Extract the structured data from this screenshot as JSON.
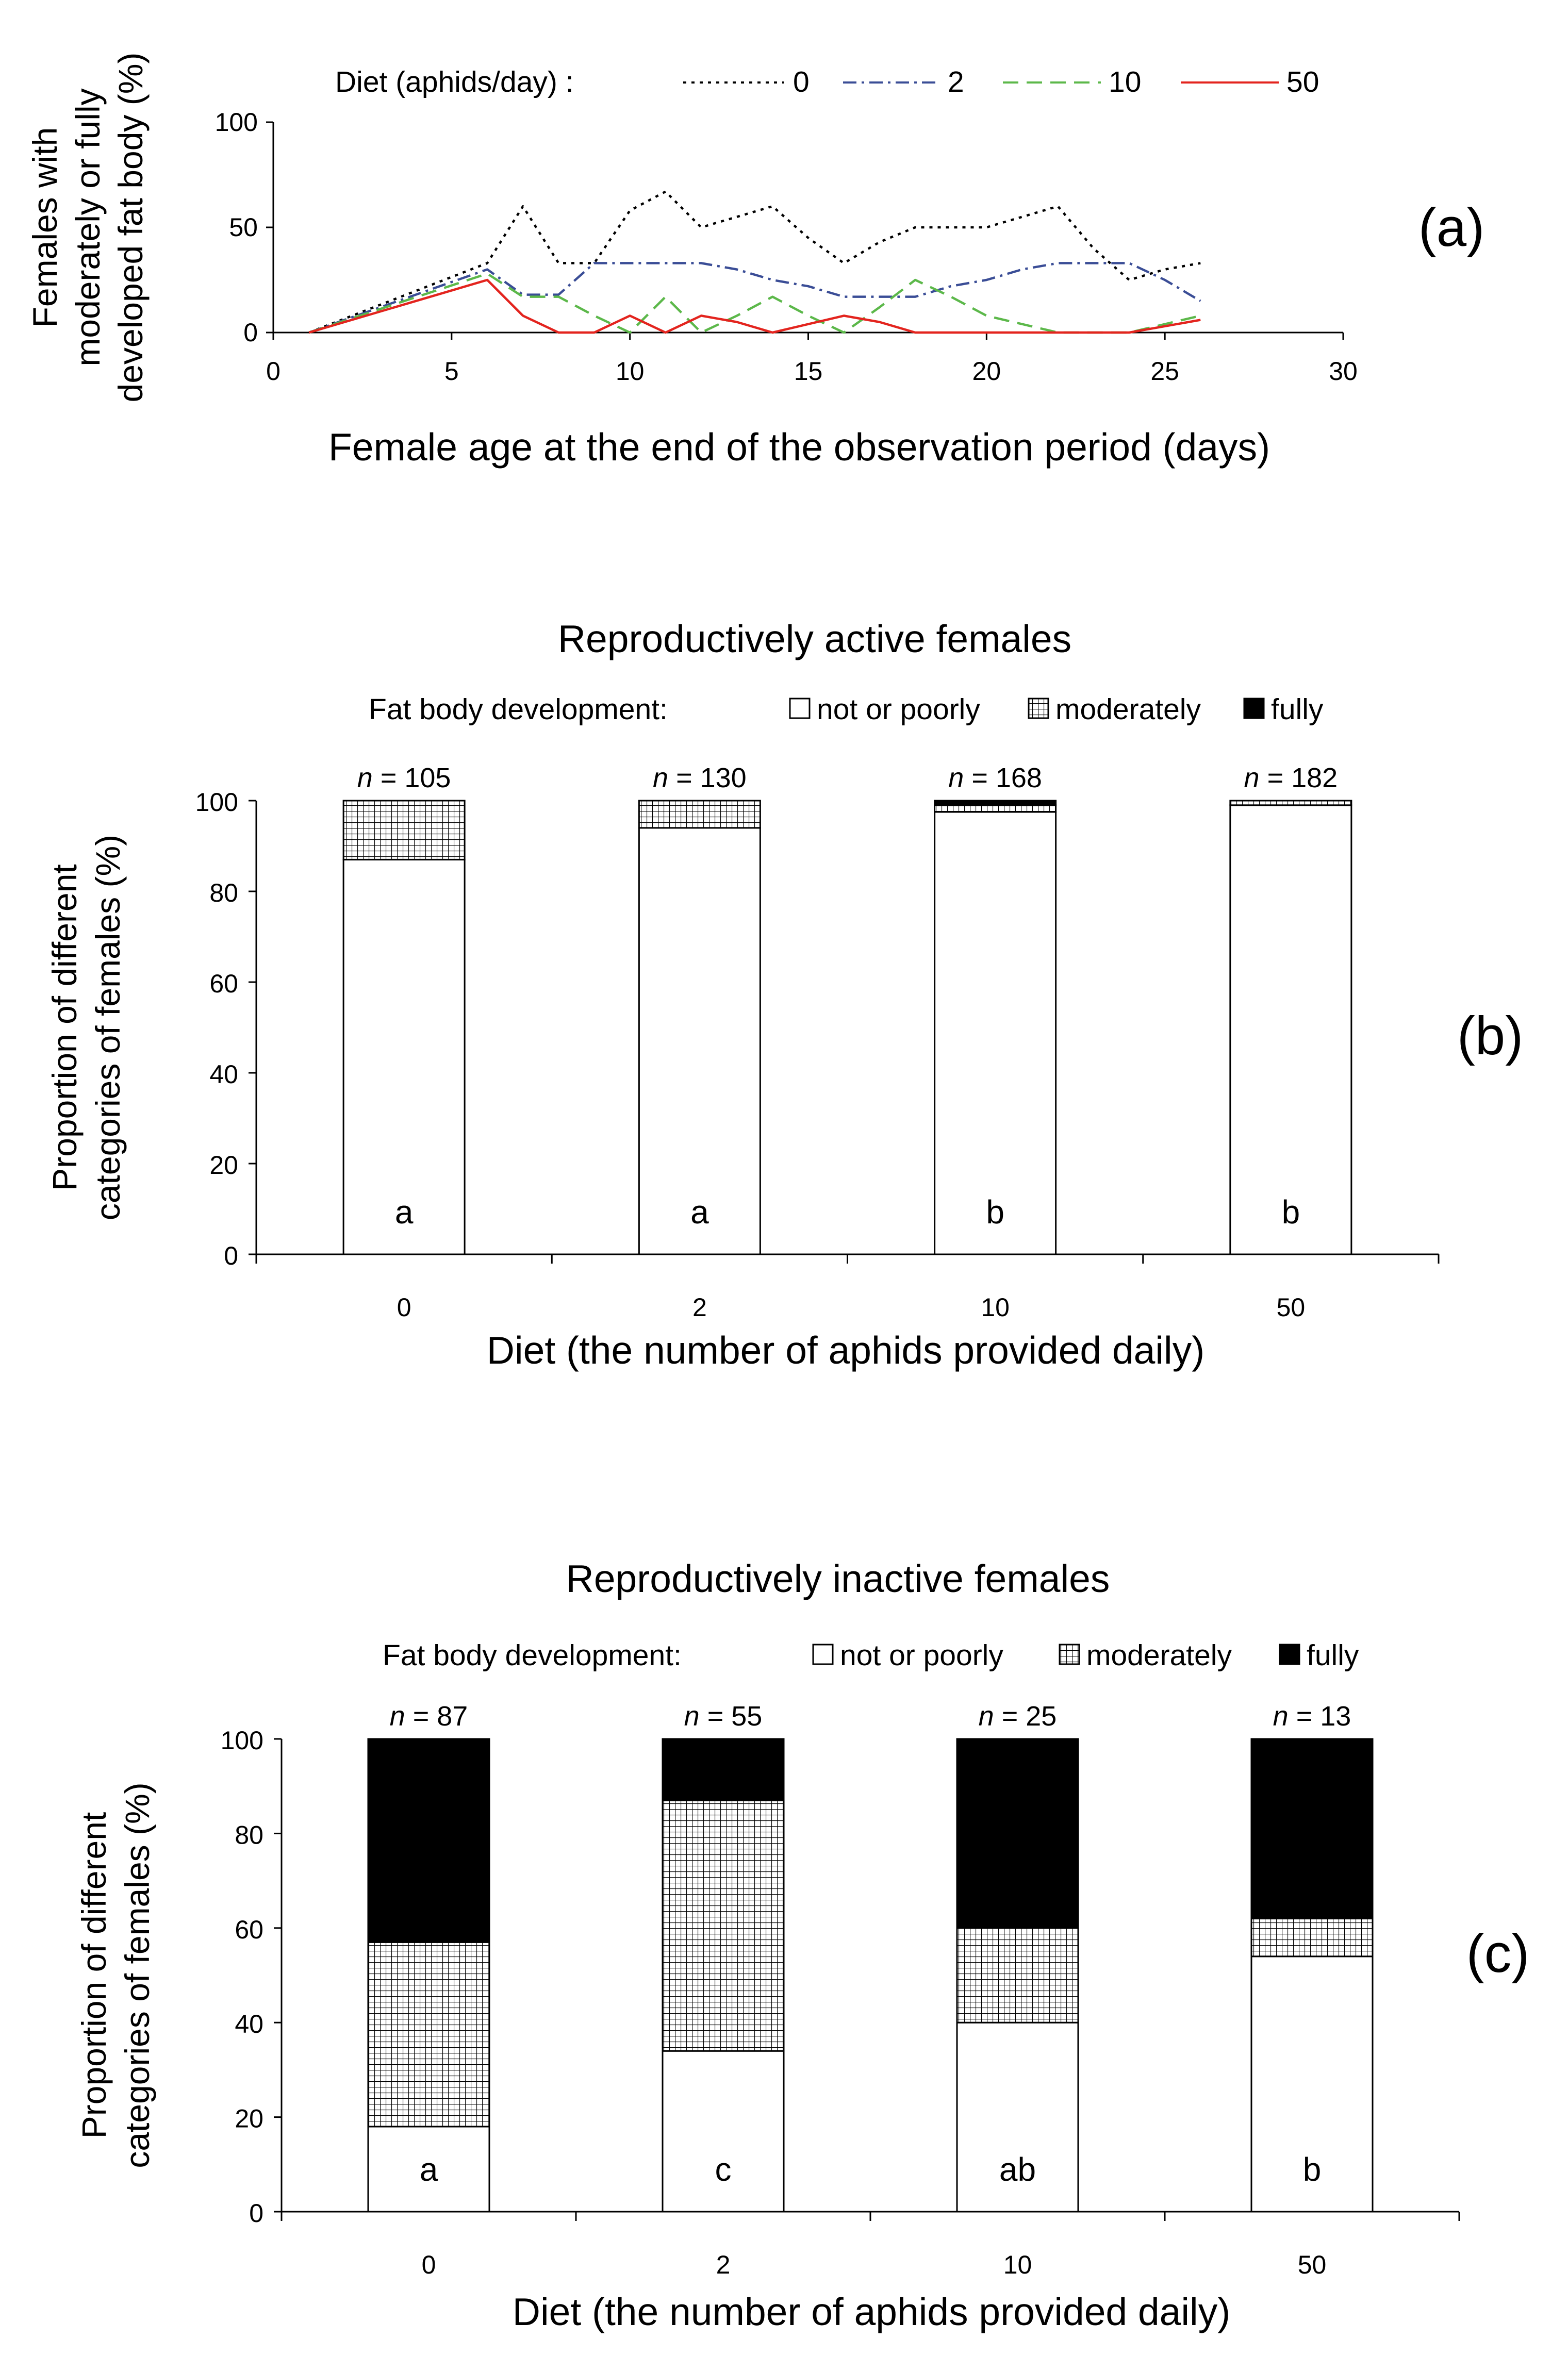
{
  "chart_data": [
    {
      "panel": "a",
      "panel_label": "(a)",
      "type": "line",
      "title": "",
      "legend_title": "Diet (aphids/day) :",
      "xlabel": "Female age at the end of the observation period (days)",
      "ylabel_lines": [
        "Females with",
        "moderately or fully",
        "developed fat body (%)"
      ],
      "xlim": [
        0,
        30
      ],
      "ylim": [
        0,
        100
      ],
      "xticks": [
        0,
        5,
        10,
        15,
        20,
        25,
        30
      ],
      "yticks": [
        0,
        50,
        100
      ],
      "series": [
        {
          "name": "0",
          "color": "#000000",
          "style": "dotted",
          "x": [
            1,
            6,
            7,
            8,
            9,
            10,
            11,
            12,
            13,
            14,
            15,
            16,
            17,
            18,
            19,
            20,
            21,
            22,
            23,
            24,
            25,
            26
          ],
          "y": [
            0,
            33,
            60,
            33,
            33,
            58,
            67,
            50,
            55,
            60,
            45,
            33,
            43,
            50,
            50,
            50,
            55,
            60,
            40,
            25,
            30,
            33
          ]
        },
        {
          "name": "2",
          "color": "#3a4d96",
          "style": "dashdot",
          "x": [
            1,
            6,
            7,
            8,
            9,
            10,
            11,
            12,
            13,
            14,
            15,
            16,
            17,
            18,
            19,
            20,
            21,
            22,
            23,
            24,
            25,
            26
          ],
          "y": [
            0,
            30,
            18,
            18,
            33,
            33,
            33,
            33,
            30,
            25,
            22,
            17,
            17,
            17,
            22,
            25,
            30,
            33,
            33,
            33,
            25,
            15
          ]
        },
        {
          "name": "10",
          "color": "#5cb84a",
          "style": "dashed",
          "x": [
            1,
            6,
            7,
            8,
            9,
            10,
            11,
            12,
            13,
            14,
            15,
            16,
            17,
            18,
            19,
            20,
            21,
            22,
            23,
            24,
            25,
            26
          ],
          "y": [
            0,
            28,
            17,
            17,
            8,
            0,
            17,
            0,
            8,
            17,
            8,
            0,
            12,
            25,
            17,
            8,
            4,
            0,
            0,
            0,
            4,
            8
          ]
        },
        {
          "name": "50",
          "color": "#e3241e",
          "style": "solid",
          "x": [
            1,
            6,
            7,
            8,
            9,
            10,
            11,
            12,
            13,
            14,
            15,
            16,
            17,
            18,
            19,
            20,
            21,
            22,
            23,
            24,
            25,
            26
          ],
          "y": [
            0,
            25,
            8,
            0,
            0,
            8,
            0,
            8,
            5,
            0,
            4,
            8,
            5,
            0,
            0,
            0,
            0,
            0,
            0,
            0,
            3,
            6
          ]
        }
      ]
    },
    {
      "panel": "b",
      "panel_label": "(b)",
      "type": "bar",
      "stacked": true,
      "title": "Reproductively active females",
      "legend_title": "Fat body development:",
      "xlabel": "Diet (the number of aphids provided daily)",
      "ylabel_lines": [
        "Proportion of different",
        "categories of females (%)"
      ],
      "ylim": [
        0,
        100
      ],
      "yticks": [
        0,
        20,
        40,
        60,
        80,
        100
      ],
      "categories": [
        "0",
        "2",
        "10",
        "50"
      ],
      "n_prefix": "n",
      "n_values": [
        "= 105",
        "= 130",
        "= 168",
        "= 182"
      ],
      "significance": [
        "a",
        "a",
        "b",
        "b"
      ],
      "series": [
        {
          "name": "not or poorly",
          "fill": "white",
          "values": [
            87,
            94,
            97.5,
            99
          ]
        },
        {
          "name": "moderately",
          "fill": "grid",
          "values": [
            13,
            6,
            1.5,
            1
          ]
        },
        {
          "name": "fully",
          "fill": "black",
          "values": [
            0,
            0,
            1,
            0
          ]
        }
      ]
    },
    {
      "panel": "c",
      "panel_label": "(c)",
      "type": "bar",
      "stacked": true,
      "title": "Reproductively inactive females",
      "legend_title": "Fat body development:",
      "xlabel": "Diet (the number of aphids provided daily)",
      "ylabel_lines": [
        "Proportion of different",
        "categories of females (%)"
      ],
      "ylim": [
        0,
        100
      ],
      "yticks": [
        0,
        20,
        40,
        60,
        80,
        100
      ],
      "categories": [
        "0",
        "2",
        "10",
        "50"
      ],
      "n_prefix": "n",
      "n_values": [
        "= 87",
        "= 55",
        "= 25",
        "= 13"
      ],
      "significance": [
        "a",
        "c",
        "ab",
        "b"
      ],
      "series": [
        {
          "name": "not or poorly",
          "fill": "white",
          "values": [
            18,
            34,
            40,
            54
          ]
        },
        {
          "name": "moderately",
          "fill": "grid",
          "values": [
            39,
            53,
            20,
            8
          ]
        },
        {
          "name": "fully",
          "fill": "black",
          "values": [
            43,
            13,
            40,
            38
          ]
        }
      ]
    }
  ]
}
